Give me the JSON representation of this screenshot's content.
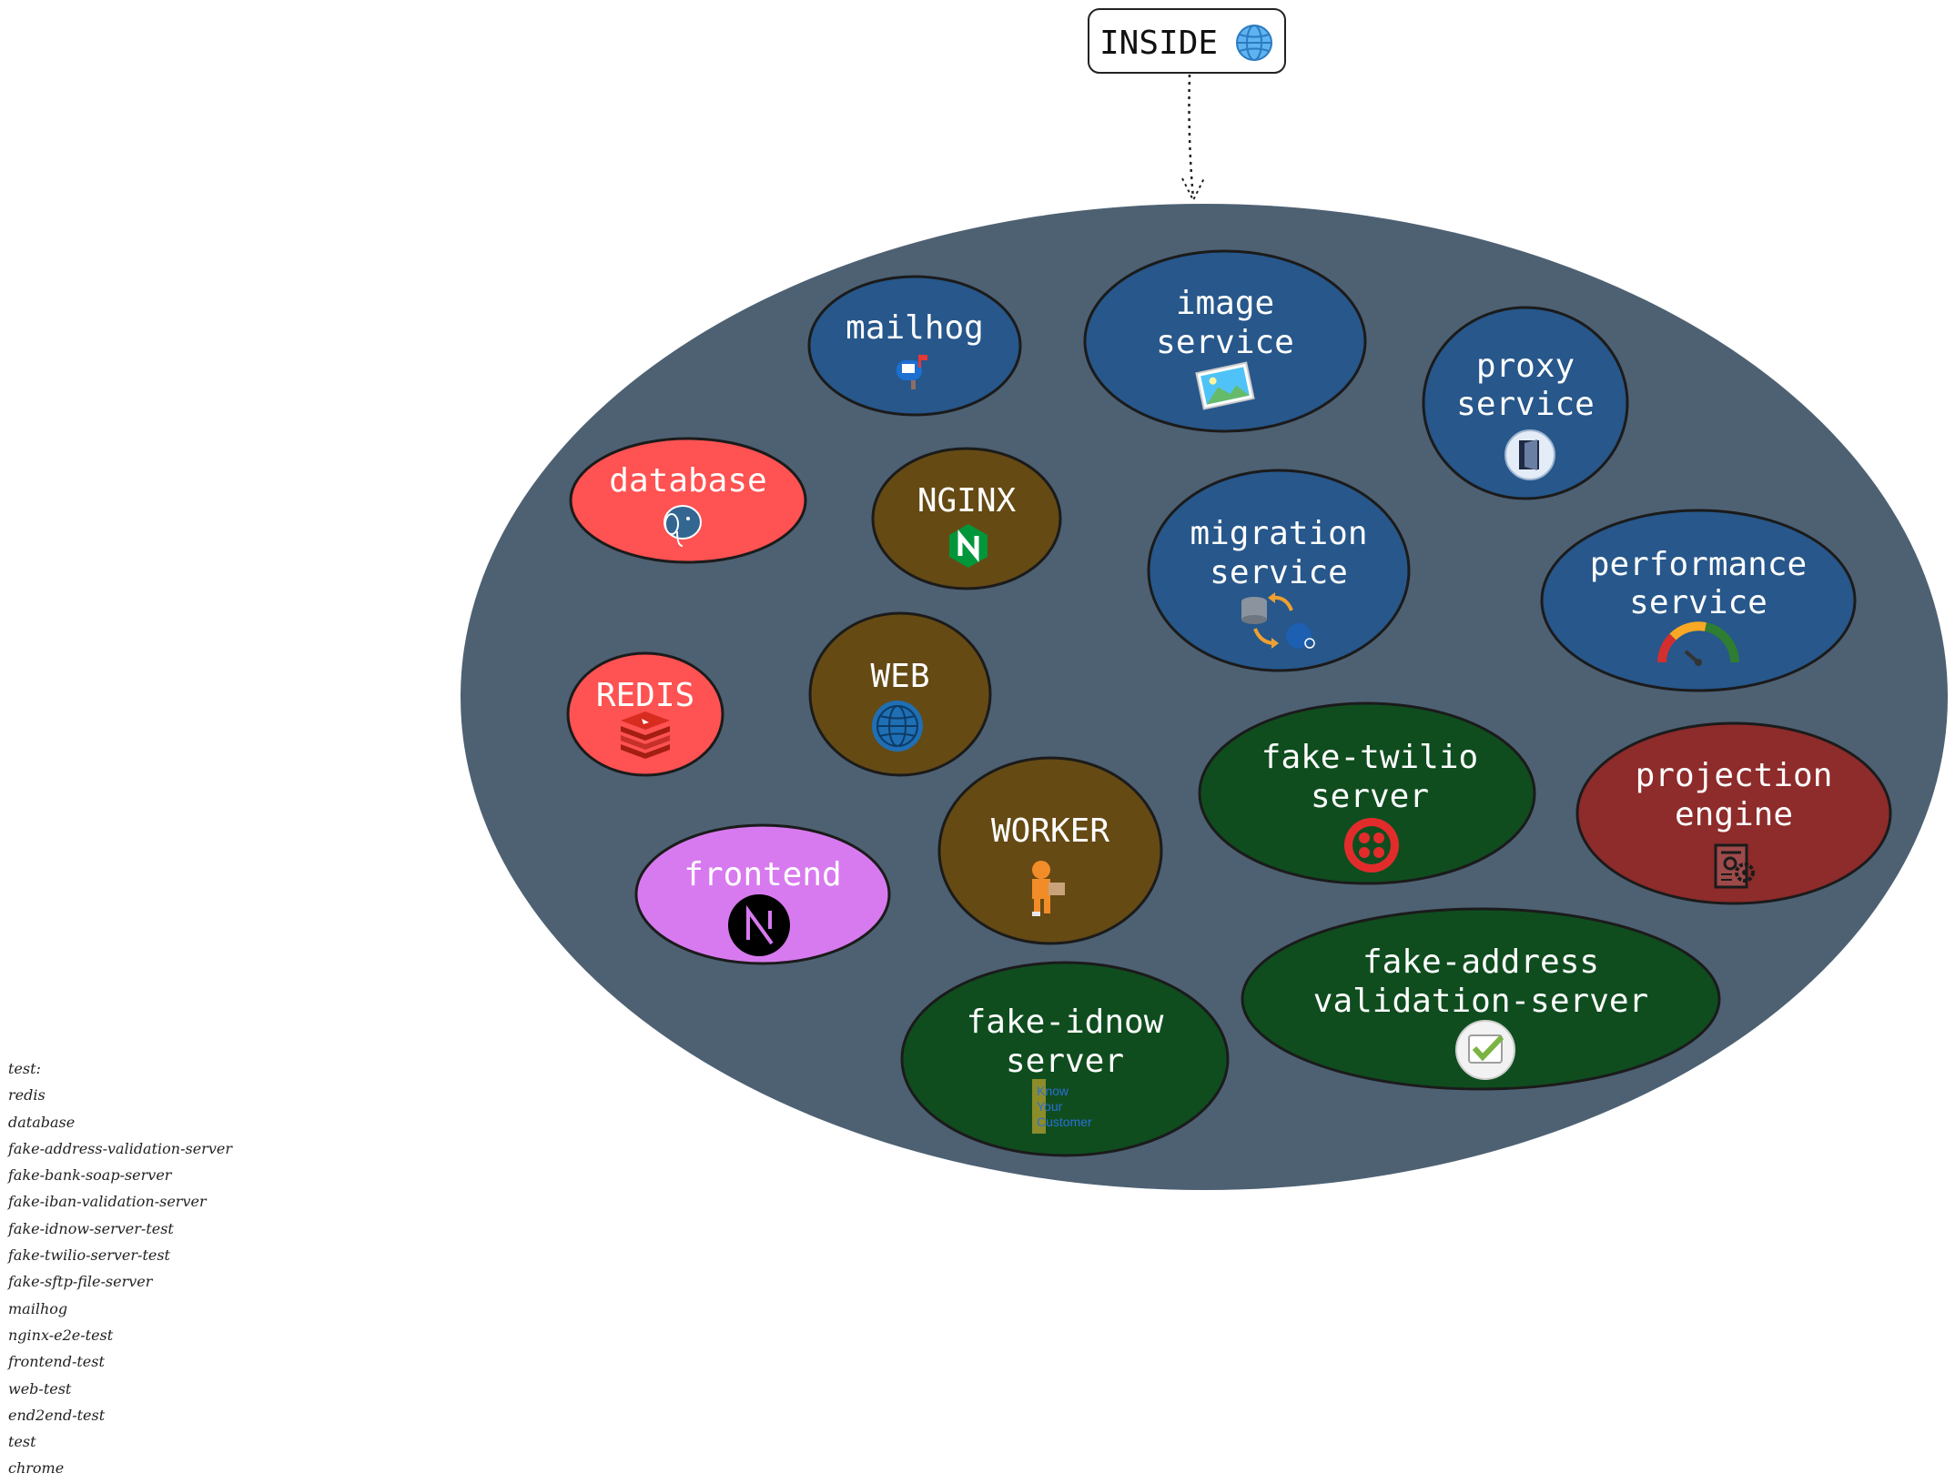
{
  "inside": {
    "label": "INSIDE",
    "icon": "globe-icon"
  },
  "colors": {
    "cluster": "#4e6173",
    "service": "#27578b",
    "infra": "#ff5252",
    "app": "#654a14",
    "fake": "#0f4d1f",
    "frontend": "#d87aef",
    "projection": "#8e2b2b"
  },
  "nodes": {
    "mailhog": {
      "lines": [
        "mailhog"
      ],
      "icon": "mailbox-icon"
    },
    "image_service": {
      "lines": [
        "image",
        "service"
      ],
      "icon": "picture-icon"
    },
    "proxy_service": {
      "lines": [
        "proxy",
        "service"
      ],
      "icon": "proxy-door-icon"
    },
    "database": {
      "lines": [
        "database"
      ],
      "icon": "postgres-elephant-icon"
    },
    "nginx": {
      "lines": [
        "NGINX"
      ],
      "icon": "nginx-icon"
    },
    "migration_service": {
      "lines": [
        "migration",
        "service"
      ],
      "icon": "migration-icon"
    },
    "performance_service": {
      "lines": [
        "performance",
        "service"
      ],
      "icon": "gauge-icon"
    },
    "redis": {
      "lines": [
        "REDIS"
      ],
      "icon": "redis-icon"
    },
    "web": {
      "lines": [
        "WEB"
      ],
      "icon": "web-globe-icon"
    },
    "fake_twilio": {
      "lines": [
        "fake-twilio",
        "server"
      ],
      "icon": "twilio-icon"
    },
    "projection_engine": {
      "lines": [
        "projection",
        "engine"
      ],
      "icon": "gears-icon"
    },
    "worker": {
      "lines": [
        "WORKER"
      ],
      "icon": "worker-person-icon"
    },
    "frontend": {
      "lines": [
        "frontend"
      ],
      "icon": "nextjs-icon"
    },
    "fake_address": {
      "lines": [
        "fake-address",
        "validation-server"
      ],
      "icon": "checkbox-icon"
    },
    "fake_idnow": {
      "lines": [
        "fake-idnow",
        "server"
      ],
      "icon": "kyc-icon",
      "icon_text": [
        "Know",
        "Your",
        "Customer"
      ]
    }
  },
  "legend": [
    "test:",
    "redis",
    "database",
    "fake-address-validation-server",
    "fake-bank-soap-server",
    "fake-iban-validation-server",
    "fake-idnow-server-test",
    "fake-twilio-server-test",
    "fake-sftp-file-server",
    "mailhog",
    "nginx-e2e-test",
    "frontend-test",
    "web-test",
    "end2end-test",
    "test",
    "chrome"
  ]
}
